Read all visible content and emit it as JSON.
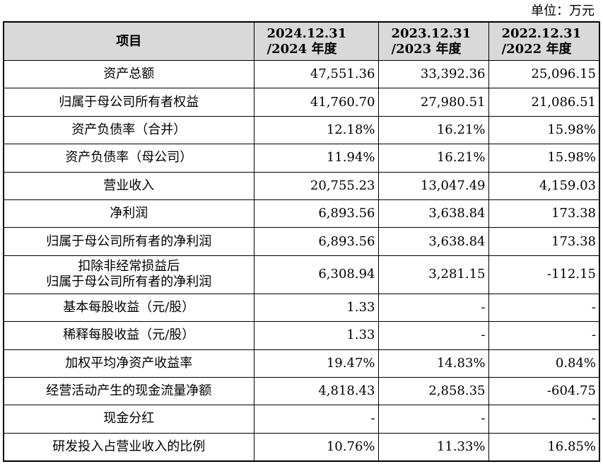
{
  "unit_label": "单位：万元",
  "table": {
    "header": {
      "item": "项目",
      "columns": [
        {
          "line1": "2024.12.31",
          "line2": "/2024 年度"
        },
        {
          "line1": "2023.12.31",
          "line2": "/2023 年度"
        },
        {
          "line1": "2022.12.31",
          "line2": "/2022 年度"
        }
      ]
    },
    "rows": [
      {
        "label": [
          "资产总额"
        ],
        "values": [
          "47,551.36",
          "33,392.36",
          "25,096.15"
        ]
      },
      {
        "label": [
          "归属于母公司所有者权益"
        ],
        "values": [
          "41,760.70",
          "27,980.51",
          "21,086.51"
        ]
      },
      {
        "label": [
          "资产负债率（合并）"
        ],
        "values": [
          "12.18%",
          "16.21%",
          "15.98%"
        ]
      },
      {
        "label": [
          "资产负债率（母公司）"
        ],
        "values": [
          "11.94%",
          "16.21%",
          "15.98%"
        ]
      },
      {
        "label": [
          "营业收入"
        ],
        "values": [
          "20,755.23",
          "13,047.49",
          "4,159.03"
        ]
      },
      {
        "label": [
          "净利润"
        ],
        "values": [
          "6,893.56",
          "3,638.84",
          "173.38"
        ]
      },
      {
        "label": [
          "归属于母公司所有者的净利润"
        ],
        "values": [
          "6,893.56",
          "3,638.84",
          "173.38"
        ]
      },
      {
        "label": [
          "扣除非经常损益后",
          "归属于母公司所有者的净利润"
        ],
        "values": [
          "6,308.94",
          "3,281.15",
          "-112.15"
        ]
      },
      {
        "label": [
          "基本每股收益（元/股）"
        ],
        "values": [
          "1.33",
          "-",
          "-"
        ]
      },
      {
        "label": [
          "稀释每股收益（元/股）"
        ],
        "values": [
          "1.33",
          "-",
          "-"
        ]
      },
      {
        "label": [
          "加权平均净资产收益率"
        ],
        "values": [
          "19.47%",
          "14.83%",
          "0.84%"
        ]
      },
      {
        "label": [
          "经营活动产生的现金流量净额"
        ],
        "values": [
          "4,818.43",
          "2,858.35",
          "-604.75"
        ]
      },
      {
        "label": [
          "现金分红"
        ],
        "values": [
          "-",
          "-",
          "-"
        ]
      },
      {
        "label": [
          "研发投入占营业收入的比例"
        ],
        "values": [
          "10.76%",
          "11.33%",
          "16.85%"
        ]
      }
    ]
  }
}
